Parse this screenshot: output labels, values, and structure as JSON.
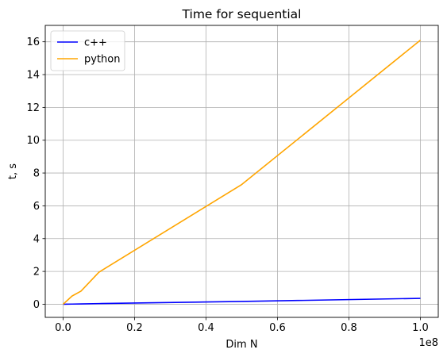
{
  "chart_data": {
    "type": "line",
    "title": "Time for sequential",
    "xlabel": "Dim N",
    "ylabel": "t, s",
    "x_offset_label": "1e8",
    "xlim": [
      -5000000,
      105000000
    ],
    "ylim": [
      -0.8,
      17.0
    ],
    "xticks": [
      0,
      20000000,
      40000000,
      60000000,
      80000000,
      100000000
    ],
    "xtick_labels": [
      "0.0",
      "0.2",
      "0.4",
      "0.6",
      "0.8",
      "1.0"
    ],
    "yticks": [
      0,
      2,
      4,
      6,
      8,
      10,
      12,
      14,
      16
    ],
    "ytick_labels": [
      "0",
      "2",
      "4",
      "6",
      "8",
      "10",
      "12",
      "14",
      "16"
    ],
    "grid": true,
    "legend_position": "upper-left",
    "series": [
      {
        "name": "c++",
        "color": "#0000ff",
        "x": [
          0,
          2500000,
          5000000,
          10000000,
          50000000,
          100000000
        ],
        "y": [
          0.0,
          0.01,
          0.02,
          0.04,
          0.17,
          0.36
        ]
      },
      {
        "name": "python",
        "color": "#ffa500",
        "x": [
          0,
          2500000,
          5000000,
          10000000,
          50000000,
          100000000
        ],
        "y": [
          0.0,
          0.5,
          0.8,
          1.95,
          7.3,
          16.1
        ]
      }
    ]
  }
}
